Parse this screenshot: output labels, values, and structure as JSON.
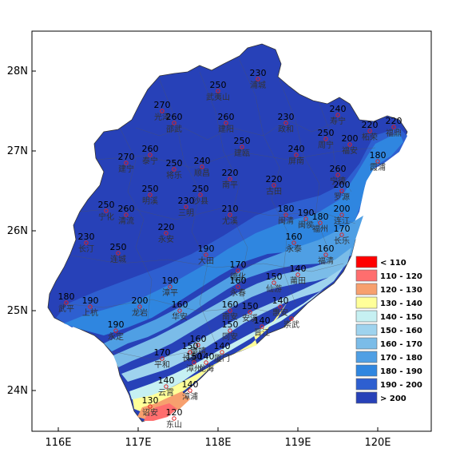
{
  "map": {
    "lat_ticks": [
      "28N",
      "27N",
      "26N",
      "25N",
      "24N"
    ],
    "lon_ticks": [
      "116E",
      "117E",
      "118E",
      "119E",
      "120E"
    ],
    "lat_values": [
      28,
      27,
      26,
      25,
      24
    ],
    "lon_values": [
      116,
      117,
      118,
      119,
      120
    ]
  },
  "legend": [
    {
      "label": "< 110",
      "color": "#ff0000"
    },
    {
      "label": "110 - 120",
      "color": "#ff6e6e"
    },
    {
      "label": "120 - 130",
      "color": "#f7a06e"
    },
    {
      "label": "130 - 140",
      "color": "#ffff99"
    },
    {
      "label": "140 - 150",
      "color": "#c6f0f2"
    },
    {
      "label": "150 - 160",
      "color": "#9fd3ee"
    },
    {
      "label": "160 - 170",
      "color": "#7bbce8"
    },
    {
      "label": "170 - 180",
      "color": "#4f9fe4"
    },
    {
      "label": "180 - 190",
      "color": "#2f86e0"
    },
    {
      "label": "190 - 200",
      "color": "#2e5fd0"
    },
    {
      "label": "> 200",
      "color": "#2741b8"
    }
  ],
  "stations": [
    {
      "name": "浦城",
      "value": "230",
      "lon": 118.5,
      "lat": 27.9
    },
    {
      "name": "武夷山",
      "value": "250",
      "lon": 118.0,
      "lat": 27.75
    },
    {
      "name": "光泽",
      "value": "270",
      "lon": 117.3,
      "lat": 27.5
    },
    {
      "name": "邵武",
      "value": "260",
      "lon": 117.45,
      "lat": 27.35
    },
    {
      "name": "建阳",
      "value": "260",
      "lon": 118.1,
      "lat": 27.35
    },
    {
      "name": "政和",
      "value": "230",
      "lon": 118.85,
      "lat": 27.35
    },
    {
      "name": "寿宁",
      "value": "240",
      "lon": 119.5,
      "lat": 27.45
    },
    {
      "name": "柘荣",
      "value": "220",
      "lon": 119.9,
      "lat": 27.25
    },
    {
      "name": "福鼎",
      "value": "220",
      "lon": 120.2,
      "lat": 27.3
    },
    {
      "name": "周宁",
      "value": "250",
      "lon": 119.35,
      "lat": 27.15
    },
    {
      "name": "福安",
      "value": "200",
      "lon": 119.65,
      "lat": 27.08
    },
    {
      "name": "建瓯",
      "value": "250",
      "lon": 118.3,
      "lat": 27.05
    },
    {
      "name": "泰宁",
      "value": "260",
      "lon": 117.15,
      "lat": 26.95
    },
    {
      "name": "建宁",
      "value": "270",
      "lon": 116.85,
      "lat": 26.85
    },
    {
      "name": "屏南",
      "value": "240",
      "lon": 118.98,
      "lat": 26.95
    },
    {
      "name": "霞浦",
      "value": "180",
      "lon": 120.0,
      "lat": 26.87
    },
    {
      "name": "将乐",
      "value": "250",
      "lon": 117.45,
      "lat": 26.77
    },
    {
      "name": "顺昌",
      "value": "240",
      "lon": 117.8,
      "lat": 26.8
    },
    {
      "name": "南平",
      "value": "220",
      "lon": 118.15,
      "lat": 26.65
    },
    {
      "name": "古田",
      "value": "220",
      "lon": 118.7,
      "lat": 26.57
    },
    {
      "name": "宁德",
      "value": "260",
      "lon": 119.5,
      "lat": 26.7
    },
    {
      "name": "罗源",
      "value": "200",
      "lon": 119.55,
      "lat": 26.5
    },
    {
      "name": "明溪",
      "value": "250",
      "lon": 117.15,
      "lat": 26.45
    },
    {
      "name": "沙县",
      "value": "250",
      "lon": 117.78,
      "lat": 26.45
    },
    {
      "name": "三明",
      "value": "230",
      "lon": 117.6,
      "lat": 26.3
    },
    {
      "name": "宁化",
      "value": "250",
      "lon": 116.6,
      "lat": 26.25
    },
    {
      "name": "清流",
      "value": "260",
      "lon": 116.85,
      "lat": 26.2
    },
    {
      "name": "尤溪",
      "value": "210",
      "lon": 118.15,
      "lat": 26.2
    },
    {
      "name": "闽清",
      "value": "180",
      "lon": 118.85,
      "lat": 26.2
    },
    {
      "name": "闽侯",
      "value": "190",
      "lon": 119.1,
      "lat": 26.15
    },
    {
      "name": "福州",
      "value": "180",
      "lon": 119.28,
      "lat": 26.1
    },
    {
      "name": "连江",
      "value": "200",
      "lon": 119.55,
      "lat": 26.2
    },
    {
      "name": "长乐",
      "value": "170",
      "lon": 119.55,
      "lat": 25.95
    },
    {
      "name": "永安",
      "value": "220",
      "lon": 117.35,
      "lat": 25.97
    },
    {
      "name": "永泰",
      "value": "160",
      "lon": 118.95,
      "lat": 25.85
    },
    {
      "name": "长汀",
      "value": "230",
      "lon": 116.35,
      "lat": 25.85
    },
    {
      "name": "连城",
      "value": "250",
      "lon": 116.75,
      "lat": 25.72
    },
    {
      "name": "大田",
      "value": "190",
      "lon": 117.85,
      "lat": 25.7
    },
    {
      "name": "福清",
      "value": "160",
      "lon": 119.35,
      "lat": 25.7
    },
    {
      "name": "德化",
      "value": "170",
      "lon": 118.25,
      "lat": 25.5
    },
    {
      "name": "仙游",
      "value": "150",
      "lon": 118.7,
      "lat": 25.35
    },
    {
      "name": "莆田",
      "value": "140",
      "lon": 119.0,
      "lat": 25.45
    },
    {
      "name": "漳平",
      "value": "190",
      "lon": 117.4,
      "lat": 25.3
    },
    {
      "name": "永春",
      "value": "160",
      "lon": 118.25,
      "lat": 25.3
    },
    {
      "name": "武平",
      "value": "180",
      "lon": 116.1,
      "lat": 25.1
    },
    {
      "name": "上杭",
      "value": "190",
      "lon": 116.4,
      "lat": 25.05
    },
    {
      "name": "龙岩",
      "value": "200",
      "lon": 117.02,
      "lat": 25.05
    },
    {
      "name": "华安",
      "value": "160",
      "lon": 117.52,
      "lat": 25.0
    },
    {
      "name": "南安",
      "value": "160",
      "lon": 118.15,
      "lat": 25.0
    },
    {
      "name": "安溪",
      "value": "150",
      "lon": 118.4,
      "lat": 24.98
    },
    {
      "name": "惠安",
      "value": "140",
      "lon": 118.78,
      "lat": 25.05
    },
    {
      "name": "永定",
      "value": "190",
      "lon": 116.72,
      "lat": 24.75
    },
    {
      "name": "同安",
      "value": "150",
      "lon": 118.15,
      "lat": 24.75
    },
    {
      "name": "晋江",
      "value": "140",
      "lon": 118.55,
      "lat": 24.8
    },
    {
      "name": "崇武",
      "value": "",
      "lon": 118.92,
      "lat": 24.9
    },
    {
      "name": "南靖",
      "value": "160",
      "lon": 117.75,
      "lat": 24.57
    },
    {
      "name": "长泰",
      "value": "150",
      "lon": 117.65,
      "lat": 24.48
    },
    {
      "name": "厦门",
      "value": "140",
      "lon": 118.05,
      "lat": 24.48
    },
    {
      "name": "平和",
      "value": "170",
      "lon": 117.3,
      "lat": 24.4
    },
    {
      "name": "漳州",
      "value": "150",
      "lon": 117.7,
      "lat": 24.35
    },
    {
      "name": "龙海",
      "value": "140",
      "lon": 117.85,
      "lat": 24.35
    },
    {
      "name": "云霄",
      "value": "140",
      "lon": 117.35,
      "lat": 24.05
    },
    {
      "name": "漳浦",
      "value": "140",
      "lon": 117.65,
      "lat": 24.0
    },
    {
      "name": "诏安",
      "value": "130",
      "lon": 117.15,
      "lat": 23.8
    },
    {
      "name": "东山",
      "value": "120",
      "lon": 117.45,
      "lat": 23.65
    }
  ]
}
